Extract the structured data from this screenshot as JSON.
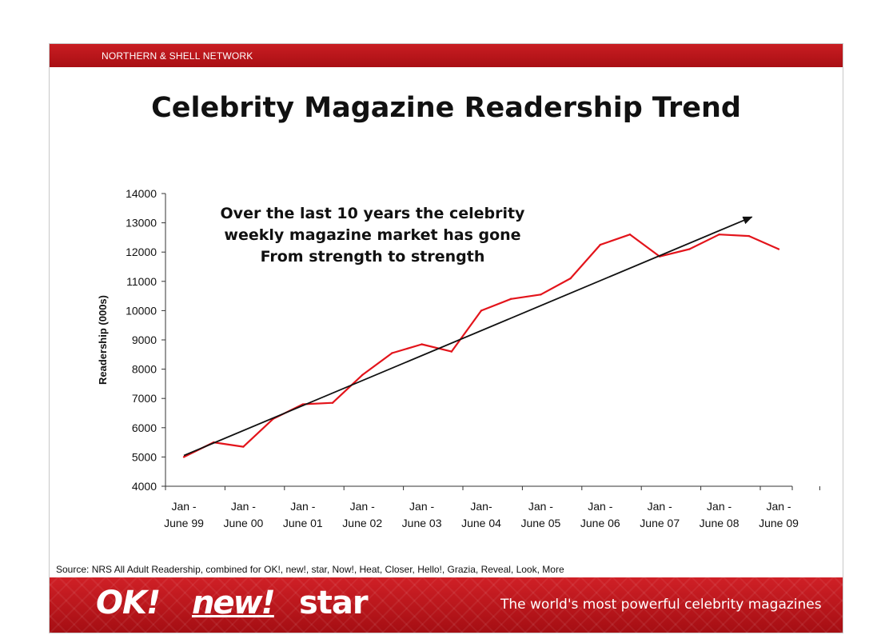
{
  "header": {
    "network": "NORTHERN & SHELL NETWORK",
    "title": "Celebrity Magazine Readership Trend"
  },
  "chart_data": {
    "type": "line",
    "title": "Celebrity Magazine Readership Trend",
    "ylabel": "Readership (000s)",
    "xlabel": "",
    "ylim": [
      4000,
      14000
    ],
    "y_ticks": [
      4000,
      5000,
      6000,
      7000,
      8000,
      9000,
      10000,
      11000,
      12000,
      13000,
      14000
    ],
    "categories": [
      [
        "Jan -",
        "June 99"
      ],
      [
        "Jan -",
        "June 00"
      ],
      [
        "Jan -",
        "June 01"
      ],
      [
        "Jan -",
        "June 02"
      ],
      [
        "Jan -",
        "June 03"
      ],
      [
        "Jan-",
        "June 04"
      ],
      [
        "Jan -",
        "June 05"
      ],
      [
        "Jan -",
        "June 06"
      ],
      [
        "Jan -",
        "June 07"
      ],
      [
        "Jan -",
        "June 08"
      ],
      [
        "Jan -",
        "June 09"
      ]
    ],
    "series": [
      {
        "color": "#e3141b",
        "x": [
          0,
          0.5,
          1,
          1.5,
          2,
          2.5,
          3,
          3.5,
          4,
          4.5,
          5,
          5.5,
          6,
          6.5,
          7,
          7.5,
          8,
          8.5,
          9,
          9.5,
          10
        ],
        "values": [
          5000,
          5500,
          5350,
          6300,
          6800,
          6850,
          7800,
          8550,
          8850,
          8600,
          10000,
          10400,
          10550,
          11100,
          12250,
          12600,
          11850,
          12100,
          12600,
          12550,
          12100
        ]
      }
    ],
    "trend_line": {
      "color": "#111111",
      "start": {
        "x": 0,
        "y": 5050
      },
      "end": {
        "x": 9.55,
        "y": 13200
      }
    },
    "annotation": [
      "Over the last 10 years the celebrity",
      "weekly magazine market has gone",
      "From strength to strength"
    ],
    "grid": false,
    "legend": "none"
  },
  "source": "Source: NRS All Adult Readership, combined for OK!, new!, star,  Now!, Heat, Closer, Hello!, Grazia, Reveal, Look, More",
  "footer": {
    "logos": [
      "OK!",
      "new!",
      "star"
    ],
    "tagline": "The world's most powerful celebrity magazines",
    "colors": {
      "brand_red": "#c91d22"
    }
  }
}
